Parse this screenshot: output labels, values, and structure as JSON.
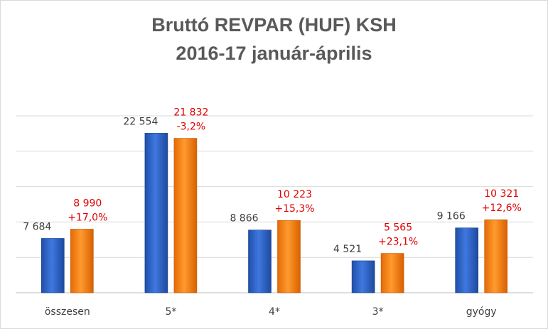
{
  "chart_data": {
    "type": "bar",
    "title": "Bruttó REVPAR (HUF) KSH",
    "subtitle": "2016-17 január-április",
    "categories": [
      "összesen",
      "5*",
      "4*",
      "3*",
      "gyógy"
    ],
    "series": [
      {
        "values": [
          7684,
          22554,
          8866,
          4521,
          9166
        ],
        "labels": [
          "7 684",
          "22 554",
          "8 866",
          "4 521",
          "9 166"
        ],
        "color": "#2e62c9"
      },
      {
        "values": [
          8990,
          21832,
          10223,
          5565,
          10321
        ],
        "labels": [
          "8 990",
          "21 832",
          "10 223",
          "5 565",
          "10 321"
        ],
        "changes": [
          "+17,0%",
          "-3,2%",
          "+15,3%",
          "+23,1%",
          "+12,6%"
        ],
        "color": "#f07b10"
      }
    ],
    "label_color_b": "#e00000",
    "ylim": [
      0,
      25000
    ],
    "grid": true,
    "legend": "none"
  }
}
